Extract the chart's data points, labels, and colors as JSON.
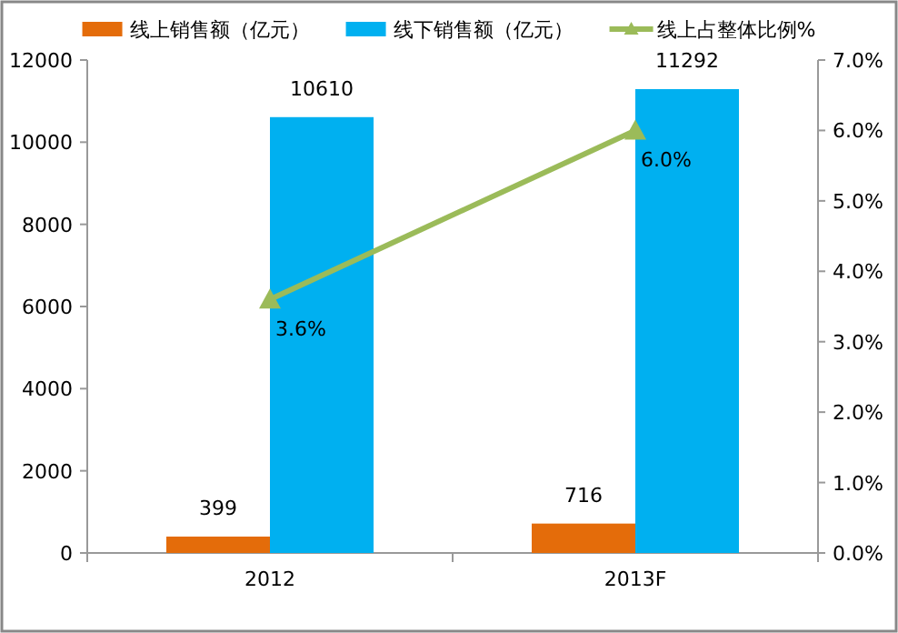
{
  "chart_data": {
    "type": "bar",
    "categories": [
      "2012",
      "2013F"
    ],
    "series": [
      {
        "name": "线上销售额（亿元）",
        "color": "#e46c0a",
        "values": [
          399,
          716
        ]
      },
      {
        "name": "线下销售额（亿元）",
        "color": "#00b0f0",
        "values": [
          10610,
          11292
        ]
      },
      {
        "name": "线上占整体比例%",
        "type": "line",
        "axis": "y2",
        "color": "#9bbb59",
        "values": [
          3.6,
          6.0
        ],
        "value_labels": [
          "3.6%",
          "6.0%"
        ],
        "marker": "triangle"
      }
    ],
    "data_labels": true,
    "ylim": [
      0,
      12000
    ],
    "yticks": [
      0,
      2000,
      4000,
      6000,
      8000,
      10000,
      12000
    ],
    "y2lim": [
      0,
      7
    ],
    "y2ticks": [
      {
        "value": 0,
        "label": "0.0%"
      },
      {
        "value": 1,
        "label": "1.0%"
      },
      {
        "value": 2,
        "label": "2.0%"
      },
      {
        "value": 3,
        "label": "3.0%"
      },
      {
        "value": 4,
        "label": "4.0%"
      },
      {
        "value": 5,
        "label": "5.0%"
      },
      {
        "value": 6,
        "label": "6.0%"
      },
      {
        "value": 7,
        "label": "7.0%"
      }
    ],
    "legend": "top",
    "grid": false
  }
}
